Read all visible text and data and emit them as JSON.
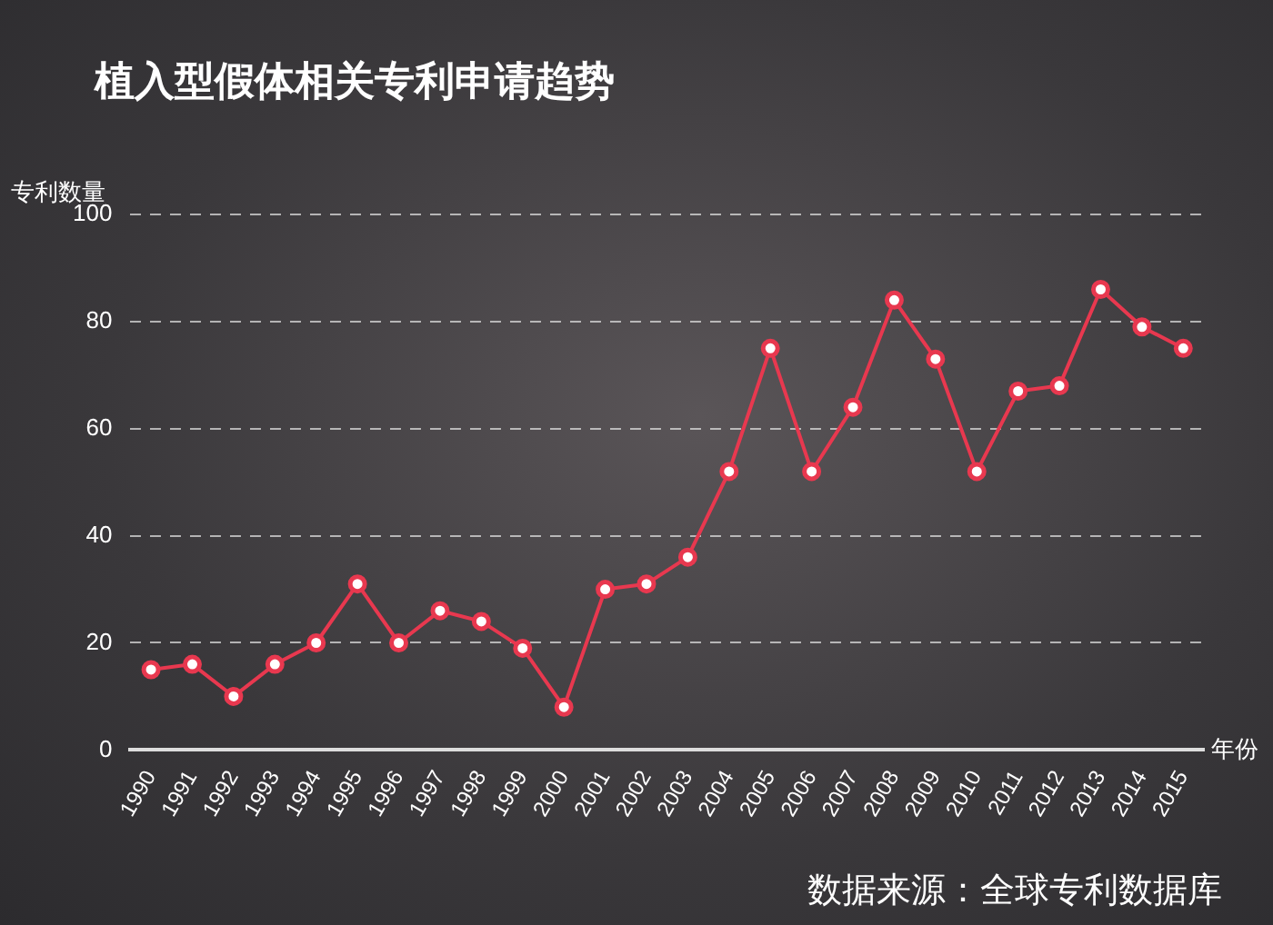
{
  "chart_data": {
    "type": "line",
    "title": "植入型假体相关专利申请趋势",
    "ylabel": "专利数量",
    "xlabel": "年份",
    "categories": [
      "1990",
      "1991",
      "1992",
      "1993",
      "1994",
      "1995",
      "1996",
      "1997",
      "1998",
      "1999",
      "2000",
      "2001",
      "2002",
      "2003",
      "2004",
      "2005",
      "2006",
      "2007",
      "2008",
      "2009",
      "2010",
      "2011",
      "2012",
      "2013",
      "2014",
      "2015"
    ],
    "series": [
      {
        "color": "#e8384f",
        "values": [
          15,
          16,
          10,
          16,
          20,
          31,
          20,
          26,
          24,
          19,
          8,
          30,
          31,
          36,
          52,
          75,
          52,
          64,
          84,
          73,
          52,
          67,
          68,
          86,
          79,
          75
        ]
      }
    ],
    "ylim": [
      0,
      100
    ],
    "yticks": [
      0,
      20,
      40,
      60,
      80,
      100
    ],
    "grid": "y",
    "legend": false,
    "marker": "circle",
    "line_style": "solid",
    "annotations": [
      "数据来源：全球专利数据库"
    ]
  }
}
